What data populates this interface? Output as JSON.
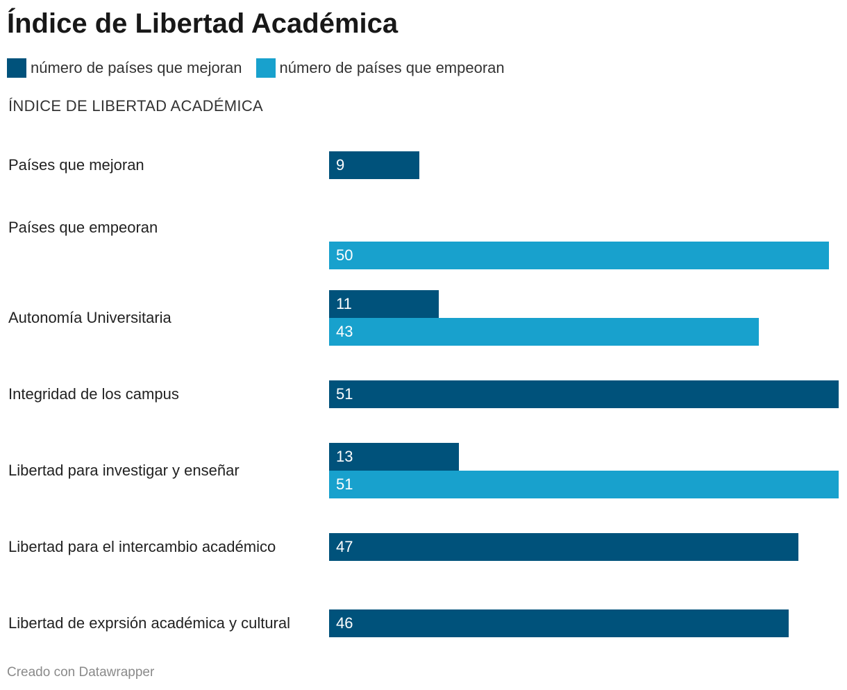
{
  "title": "Índice de Libertad Académica",
  "legend": [
    {
      "label": "número de países que mejoran",
      "color": "#00527b"
    },
    {
      "label": "número de países que empeoran",
      "color": "#18a1cd"
    }
  ],
  "footer": "Creado con Datawrapper",
  "chart_data": {
    "type": "bar",
    "orientation": "horizontal",
    "title": "ÍNDICE DE LIBERTAD ACADÉMICA",
    "xlim": [
      0,
      51
    ],
    "grid": false,
    "legend_position": "top-left",
    "categories": [
      "Países que mejoran",
      "Países que empeoran",
      "Autonomía Universitaria",
      "Integridad de los campus",
      "Libertad para investigar y enseñar",
      "Libertad para el intercambio académico",
      "Libertad de exprsión académica y cultural"
    ],
    "series": [
      {
        "name": "número de países que mejoran",
        "color": "#00527b",
        "values": [
          9,
          null,
          11,
          51,
          13,
          47,
          46
        ]
      },
      {
        "name": "número de países que empeoran",
        "color": "#18a1cd",
        "values": [
          null,
          50,
          43,
          null,
          51,
          null,
          null
        ]
      }
    ]
  }
}
